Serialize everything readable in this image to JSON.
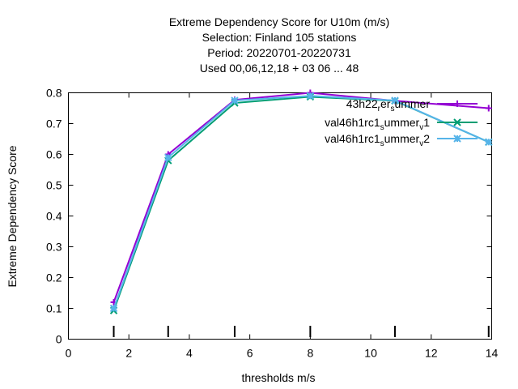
{
  "chart_data": {
    "type": "line",
    "title_lines": [
      "Extreme Dependency Score  for U10m (m/s)",
      "Selection: Finland    105 stations",
      "Period: 20220701-20220731",
      "Used  00,06,12,18  + 03 06 ... 48"
    ],
    "xlabel": "thresholds m/s",
    "ylabel": "Extreme Dependency Score",
    "xlim": [
      0,
      14
    ],
    "ylim": [
      0,
      0.8
    ],
    "x_ticks": [
      0,
      2,
      4,
      6,
      8,
      10,
      12,
      14
    ],
    "x_tick_labels": [
      "0",
      "2",
      "4",
      "6",
      "8",
      "10",
      "12",
      "14"
    ],
    "y_ticks": [
      0,
      0.1,
      0.2,
      0.3,
      0.4,
      0.5,
      0.6,
      0.7,
      0.8
    ],
    "y_tick_labels": [
      "0",
      "0.1",
      "0.2",
      "0.3",
      "0.4",
      "0.5",
      "0.6",
      "0.7",
      "0.8"
    ],
    "threshold_marks": [
      1.5,
      3.3,
      5.5,
      8,
      10.8,
      13.9
    ],
    "grid": false,
    "legend_position": "top-right",
    "series": [
      {
        "name": "43h22_r_er_s_ummer",
        "legend_parts": [
          [
            "43h22",
            ""
          ],
          [
            "r",
            "sub"
          ],
          [
            "er",
            ""
          ],
          [
            "s",
            "sub"
          ],
          [
            "ummer",
            ""
          ]
        ],
        "color": "#9400d3",
        "marker": "plus",
        "x": [
          1.5,
          3.3,
          5.5,
          8,
          10.8,
          13.9
        ],
        "y": [
          0.12,
          0.6,
          0.777,
          0.8,
          0.774,
          0.75
        ]
      },
      {
        "name": "val46h1rc1_s_ummer_v_1",
        "legend_parts": [
          [
            "val46h1rc1",
            ""
          ],
          [
            "s",
            "sub"
          ],
          [
            "ummer",
            ""
          ],
          [
            "v",
            "sub"
          ],
          [
            "1",
            ""
          ]
        ],
        "color": "#009e73",
        "marker": "x",
        "x": [
          1.5,
          3.3,
          5.5,
          8,
          10.8,
          13.9
        ],
        "y": [
          0.093,
          0.58,
          0.767,
          0.787,
          0.774,
          0.64
        ]
      },
      {
        "name": "val46h1rc1_s_ummer_v_2",
        "legend_parts": [
          [
            "val46h1rc1",
            ""
          ],
          [
            "s",
            "sub"
          ],
          [
            "ummer",
            ""
          ],
          [
            "v",
            "sub"
          ],
          [
            "2",
            ""
          ]
        ],
        "color": "#56b4e9",
        "marker": "star",
        "x": [
          1.5,
          3.3,
          5.5,
          8,
          10.8,
          13.9
        ],
        "y": [
          0.1,
          0.59,
          0.775,
          0.79,
          0.775,
          0.64
        ]
      }
    ]
  }
}
